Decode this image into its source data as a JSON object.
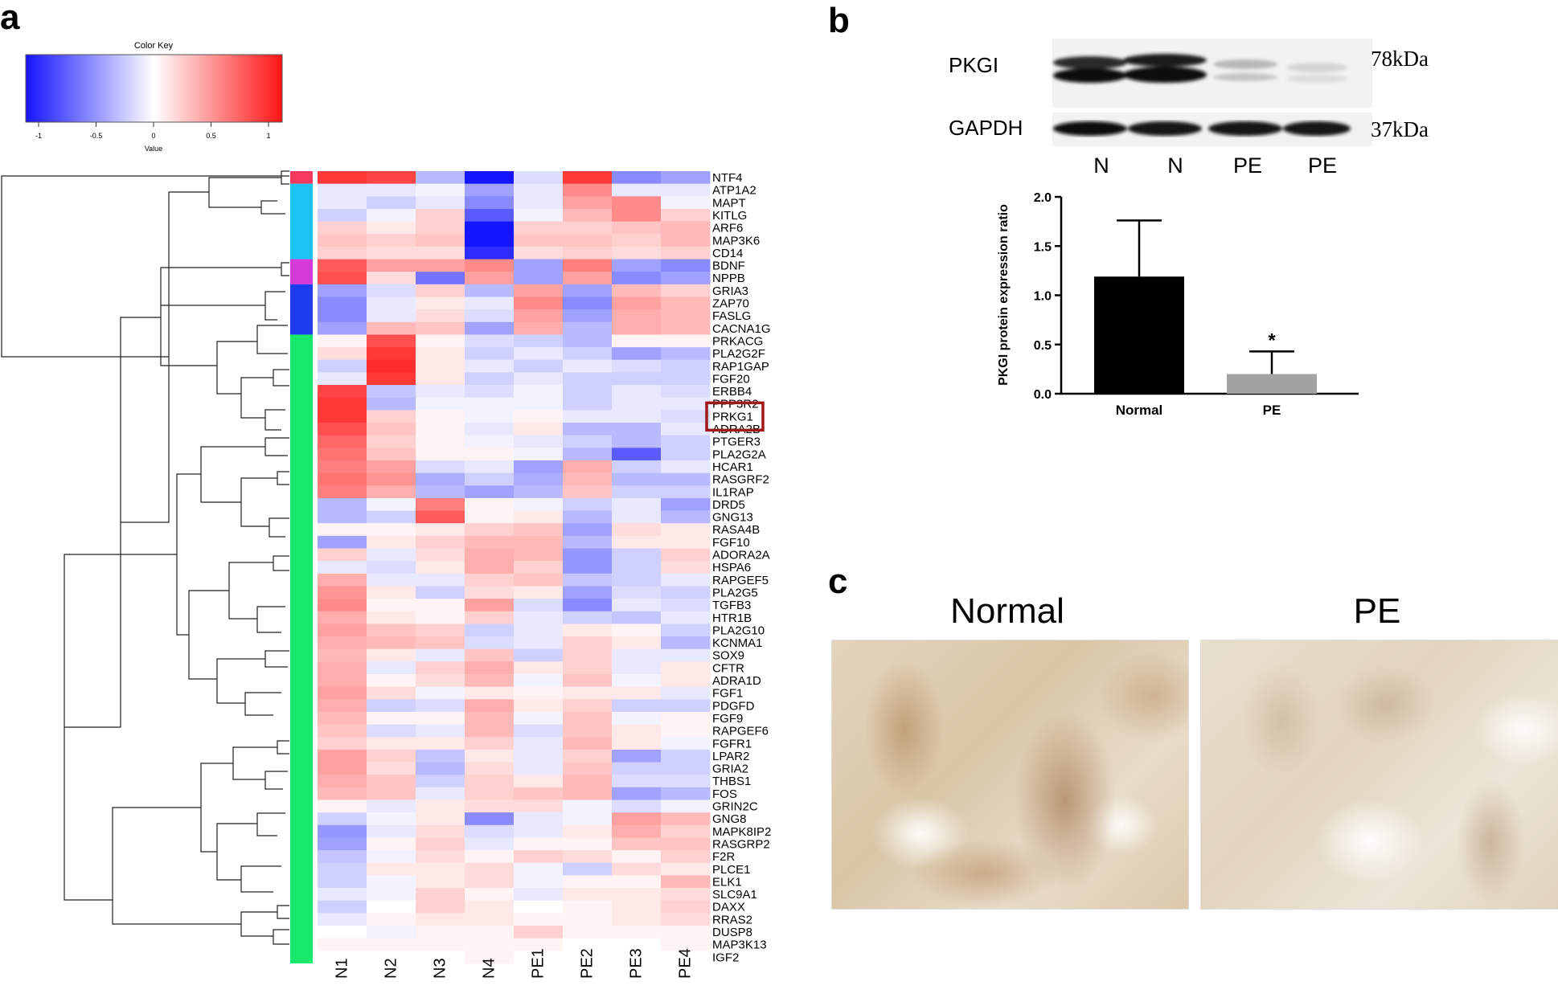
{
  "figure": {
    "panels": {
      "a": "a",
      "b": "b",
      "c": "c"
    },
    "colorkey": {
      "title": "Color Key",
      "xlabel": "Value",
      "ticks": [
        "-1",
        "-0.5",
        "0",
        "0.5",
        "1"
      ],
      "colors": {
        "low": "#1515ff",
        "mid": "#ffffff",
        "high": "#ff1515"
      }
    },
    "heatmap": {
      "columns": [
        "N1",
        "N2",
        "N3",
        "N4",
        "PE1",
        "PE2",
        "PE3",
        "PE4"
      ],
      "highlighted_gene": "PRKG1",
      "highlight_color": "#a01818",
      "genes": [
        "NTF4",
        "ATP1A2",
        "MAPT",
        "KITLG",
        "ARF6",
        "MAP3K6",
        "CD14",
        "BDNF",
        "NPPB",
        "GRIA3",
        "ZAP70",
        "FASLG",
        "CACNA1G",
        "PRKACG",
        "PLA2G2F",
        "RAP1GAP",
        "FGF20",
        "ERBB4",
        "PPP3R2",
        "PRKG1",
        "ADRA2B",
        "PTGER3",
        "PLA2G2A",
        "HCAR1",
        "RASGRF2",
        "IL1RAP",
        "DRD5",
        "GNG13",
        "RASA4B",
        "FGF10",
        "ADORA2A",
        "HSPA6",
        "RAPGEF5",
        "PLA2G5",
        "TGFB3",
        "HTR1B",
        "PLA2G10",
        "KCNMA1",
        "SOX9",
        "CFTR",
        "ADRA1D",
        "FGF1",
        "PDGFD",
        "FGF9",
        "RAPGEF6",
        "FGFR1",
        "LPAR2",
        "GRIA2",
        "THBS1",
        "FOS",
        "GRIN2C",
        "GNG8",
        "MAPK8IP2",
        "RASGRP2",
        "F2R",
        "PLCE1",
        "ELK1",
        "SLC9A1",
        "DAXX",
        "RRAS2",
        "DUSP8",
        "MAP3K13",
        "IGF2"
      ],
      "values": [
        [
          0.85,
          0.8,
          -0.3,
          -1.0,
          -0.15,
          0.85,
          -0.5,
          -0.4
        ],
        [
          -0.1,
          -0.1,
          -0.05,
          -0.4,
          -0.1,
          0.5,
          -0.1,
          -0.1
        ],
        [
          -0.1,
          -0.2,
          -0.1,
          -0.5,
          -0.1,
          0.4,
          0.5,
          -0.05
        ],
        [
          -0.2,
          -0.05,
          0.2,
          -0.7,
          -0.05,
          0.3,
          0.5,
          0.2
        ],
        [
          0.2,
          0.1,
          0.2,
          -1.0,
          0.2,
          0.2,
          0.25,
          0.3
        ],
        [
          0.25,
          0.2,
          0.25,
          -1.0,
          0.25,
          0.25,
          0.2,
          0.3
        ],
        [
          0.2,
          0.15,
          0.15,
          -0.9,
          0.15,
          0.2,
          0.15,
          0.2
        ],
        [
          0.7,
          0.4,
          0.4,
          0.5,
          -0.4,
          0.55,
          -0.4,
          -0.5
        ],
        [
          0.75,
          0.15,
          -0.6,
          0.4,
          -0.4,
          0.4,
          -0.5,
          -0.4
        ],
        [
          -0.4,
          -0.15,
          0.2,
          -0.3,
          0.4,
          -0.4,
          0.3,
          0.2
        ],
        [
          -0.5,
          -0.1,
          0.1,
          -0.1,
          0.5,
          -0.5,
          0.4,
          0.3
        ],
        [
          -0.5,
          -0.1,
          0.15,
          -0.15,
          0.4,
          -0.4,
          0.35,
          0.3
        ],
        [
          -0.4,
          0.3,
          0.25,
          -0.4,
          0.35,
          -0.3,
          0.35,
          0.3
        ],
        [
          0.05,
          0.75,
          0.05,
          -0.15,
          -0.2,
          -0.3,
          0.05,
          0.05
        ],
        [
          0.15,
          0.85,
          0.1,
          -0.2,
          -0.1,
          -0.2,
          -0.4,
          -0.3
        ],
        [
          -0.2,
          0.9,
          0.1,
          -0.1,
          -0.2,
          -0.1,
          -0.15,
          -0.2
        ],
        [
          -0.1,
          0.85,
          0.1,
          -0.2,
          -0.1,
          -0.2,
          -0.2,
          -0.2
        ],
        [
          0.8,
          -0.25,
          -0.1,
          -0.15,
          -0.05,
          -0.2,
          -0.1,
          -0.15
        ],
        [
          0.85,
          -0.3,
          -0.05,
          -0.05,
          -0.05,
          -0.2,
          -0.1,
          -0.1
        ],
        [
          0.85,
          0.2,
          0.05,
          -0.05,
          0.05,
          -0.1,
          -0.1,
          -0.15
        ],
        [
          0.75,
          0.25,
          0.05,
          -0.1,
          0.1,
          -0.3,
          -0.3,
          -0.1
        ],
        [
          0.65,
          0.2,
          0.05,
          -0.05,
          -0.1,
          -0.2,
          -0.3,
          -0.2
        ],
        [
          0.6,
          0.25,
          0.05,
          0.05,
          -0.05,
          -0.3,
          -0.7,
          -0.2
        ],
        [
          0.55,
          0.4,
          -0.15,
          -0.1,
          -0.4,
          0.35,
          -0.2,
          -0.1
        ],
        [
          0.6,
          0.45,
          -0.35,
          -0.2,
          -0.35,
          0.3,
          -0.3,
          -0.3
        ],
        [
          0.55,
          0.35,
          -0.3,
          -0.4,
          -0.3,
          0.25,
          -0.2,
          -0.2
        ],
        [
          -0.3,
          -0.05,
          0.55,
          0.05,
          -0.05,
          -0.2,
          -0.1,
          -0.4
        ],
        [
          -0.3,
          -0.2,
          0.7,
          0.05,
          0.1,
          -0.3,
          -0.1,
          -0.3
        ],
        [
          0.05,
          0.05,
          0.1,
          0.2,
          0.25,
          -0.4,
          0.15,
          0.1
        ],
        [
          -0.4,
          0.1,
          0.2,
          0.3,
          0.3,
          -0.3,
          0.1,
          0.1
        ],
        [
          0.2,
          -0.1,
          0.15,
          0.35,
          0.3,
          -0.45,
          -0.2,
          0.2
        ],
        [
          -0.1,
          -0.15,
          0.1,
          0.35,
          0.2,
          -0.45,
          -0.2,
          0.15
        ],
        [
          0.35,
          -0.1,
          -0.1,
          0.2,
          0.25,
          -0.25,
          -0.2,
          -0.1
        ],
        [
          0.45,
          0.1,
          -0.2,
          0.15,
          0.1,
          -0.4,
          -0.15,
          -0.2
        ],
        [
          0.5,
          0.05,
          0.05,
          0.4,
          -0.15,
          -0.5,
          -0.1,
          -0.15
        ],
        [
          0.35,
          0.1,
          0.05,
          0.2,
          -0.1,
          -0.2,
          -0.25,
          -0.1
        ],
        [
          0.4,
          0.25,
          0.2,
          -0.2,
          -0.1,
          0.1,
          0.05,
          -0.2
        ],
        [
          0.35,
          0.3,
          0.25,
          -0.15,
          -0.1,
          0.2,
          0.1,
          -0.3
        ],
        [
          0.3,
          0.1,
          -0.1,
          0.25,
          -0.2,
          0.2,
          -0.1,
          -0.1
        ],
        [
          0.35,
          -0.1,
          0.2,
          0.35,
          0.1,
          0.2,
          -0.1,
          0.1
        ],
        [
          0.35,
          0.05,
          0.15,
          0.3,
          -0.05,
          0.25,
          -0.05,
          0.1
        ],
        [
          0.4,
          0.15,
          -0.05,
          0.1,
          0.05,
          0.1,
          0.1,
          -0.1
        ],
        [
          0.35,
          -0.2,
          -0.15,
          0.35,
          0.1,
          0.2,
          -0.2,
          -0.2
        ],
        [
          0.3,
          0.05,
          0.05,
          0.3,
          -0.05,
          0.25,
          -0.05,
          0.05
        ],
        [
          0.25,
          -0.15,
          -0.1,
          0.3,
          -0.15,
          0.25,
          0.1,
          0.05
        ],
        [
          0.2,
          0.1,
          0.1,
          0.2,
          -0.1,
          0.3,
          0.1,
          -0.05
        ],
        [
          0.4,
          0.2,
          -0.25,
          0.1,
          -0.1,
          0.2,
          -0.4,
          -0.2
        ],
        [
          0.4,
          0.15,
          -0.3,
          0.15,
          -0.1,
          0.25,
          -0.2,
          -0.2
        ],
        [
          0.35,
          0.25,
          -0.2,
          0.2,
          0.1,
          0.3,
          -0.15,
          -0.15
        ],
        [
          0.3,
          0.25,
          -0.1,
          0.2,
          0.25,
          0.3,
          -0.4,
          -0.3
        ],
        [
          0.05,
          -0.1,
          0.1,
          0.15,
          0.15,
          -0.05,
          -0.15,
          -0.05
        ],
        [
          -0.2,
          -0.05,
          0.1,
          -0.5,
          -0.1,
          -0.05,
          0.4,
          0.3
        ],
        [
          -0.45,
          -0.1,
          0.15,
          -0.15,
          -0.1,
          0.1,
          0.35,
          0.2
        ],
        [
          -0.4,
          0.05,
          0.2,
          -0.1,
          0.05,
          0.05,
          0.25,
          0.25
        ],
        [
          -0.25,
          -0.05,
          0.15,
          0.05,
          0.2,
          0.15,
          0.05,
          0.2
        ],
        [
          -0.2,
          0.1,
          0.1,
          0.15,
          -0.05,
          -0.2,
          0.15,
          0.1
        ],
        [
          -0.2,
          -0.05,
          0.1,
          0.15,
          -0.05,
          0.05,
          0.05,
          0.3
        ],
        [
          -0.1,
          -0.05,
          0.2,
          0.05,
          -0.1,
          0.1,
          0.1,
          0.15
        ],
        [
          -0.2,
          0.0,
          0.2,
          0.1,
          0.0,
          0.05,
          0.1,
          0.2
        ],
        [
          -0.1,
          0.05,
          0.1,
          0.1,
          0.05,
          0.05,
          0.1,
          0.15
        ],
        [
          0.0,
          -0.05,
          0.05,
          0.05,
          0.2,
          0.05,
          0.05,
          0.05
        ],
        [
          0.05,
          0.05,
          0.05,
          0.05,
          0.05,
          0.0,
          0.0,
          0.05
        ],
        [
          0.0,
          0.0,
          0.0,
          0.05,
          0.0,
          0.0,
          0.0,
          0.0
        ]
      ],
      "row_side_colors": [
        {
          "label": "red",
          "color": "#f53a5e",
          "count": 1
        },
        {
          "label": "cyan",
          "color": "#1ec3f5",
          "count": 6
        },
        {
          "label": "magenta",
          "color": "#d43ad6",
          "count": 2
        },
        {
          "label": "blue",
          "color": "#1c3ced",
          "count": 4
        },
        {
          "label": "green",
          "color": "#18e86a",
          "count": 50
        }
      ]
    },
    "western_blot": {
      "bands": [
        {
          "name": "PKGI",
          "size": "78kDa"
        },
        {
          "name": "GAPDH",
          "size": "37kDa"
        }
      ],
      "lanes": [
        "N",
        "N",
        "PE",
        "PE"
      ]
    },
    "ihc": {
      "labels": [
        "Normal",
        "PE"
      ]
    }
  },
  "chart_data": {
    "type": "bar",
    "categories": [
      "Normal",
      "PE"
    ],
    "values": [
      1.19,
      0.2
    ],
    "errors": [
      0.57,
      0.23
    ],
    "bar_colors": [
      "#000000",
      "#a3a3a3"
    ],
    "significance": [
      "",
      "*"
    ],
    "title": "",
    "xlabel": "",
    "ylabel": "PKGI protein expression ratio",
    "ylim": [
      0,
      2.0
    ],
    "yticks": [
      "0.0",
      "0.5",
      "1.0",
      "1.5",
      "2.0"
    ]
  }
}
